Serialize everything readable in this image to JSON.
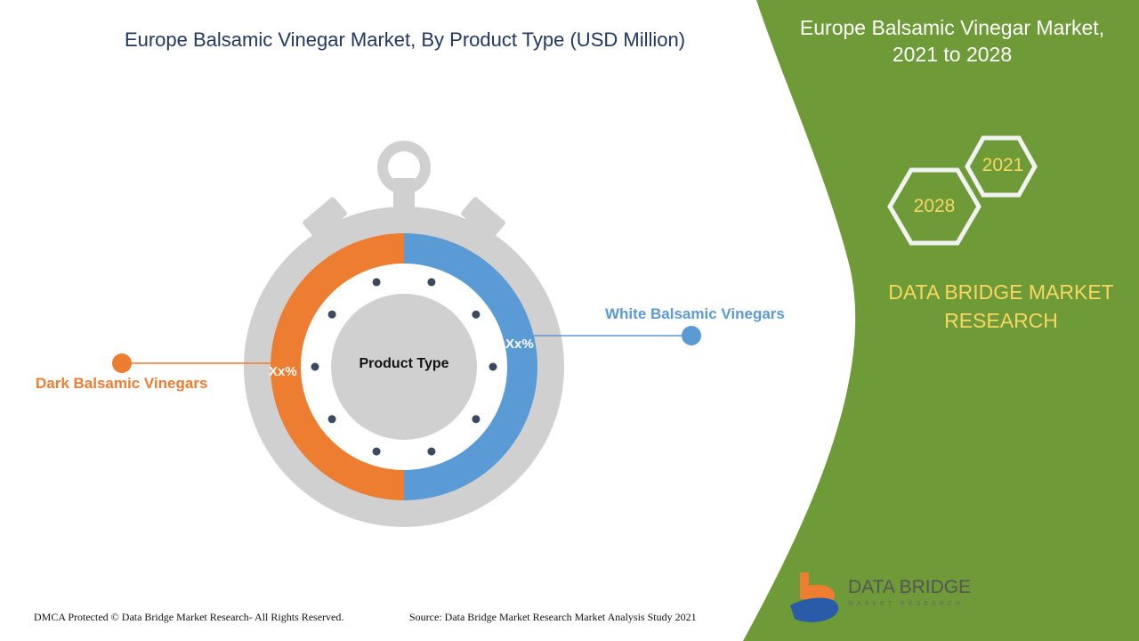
{
  "header": {
    "title": "Europe Balsamic Vinegar Market, By Product Type (USD Million)"
  },
  "side_panel": {
    "title_line1": "Europe Balsamic Vinegar Market,",
    "title_line2": "2021 to 2028",
    "year_start": "2021",
    "year_end": "2028",
    "brand_line1": "DATA BRIDGE MARKET",
    "brand_line2": "RESEARCH"
  },
  "logo": {
    "name": "DATA BRIDGE",
    "tagline": "MARKET RESEARCH"
  },
  "footer": {
    "copyright": "DMCA Protected © Data Bridge Market Research- All Rights Reserved.",
    "source": "Source: Data Bridge Market Research Market Analysis Study 2021"
  },
  "colors": {
    "green": "#6f9a38",
    "orange": "#ed7d31",
    "blue": "#5b9bd5",
    "grey": "#d0d0d0"
  },
  "chart_data": {
    "type": "pie",
    "title": "Europe Balsamic Vinegar Market, By Product Type (USD Million)",
    "center_label": "Product Type",
    "categories": [
      "White Balsamic Vinegars",
      "Dark Balsamic Vinegars"
    ],
    "values": [
      50,
      50
    ],
    "data_labels": [
      "Xx%",
      "Xx%"
    ],
    "colors": [
      "#5b9bd5",
      "#ed7d31"
    ]
  }
}
